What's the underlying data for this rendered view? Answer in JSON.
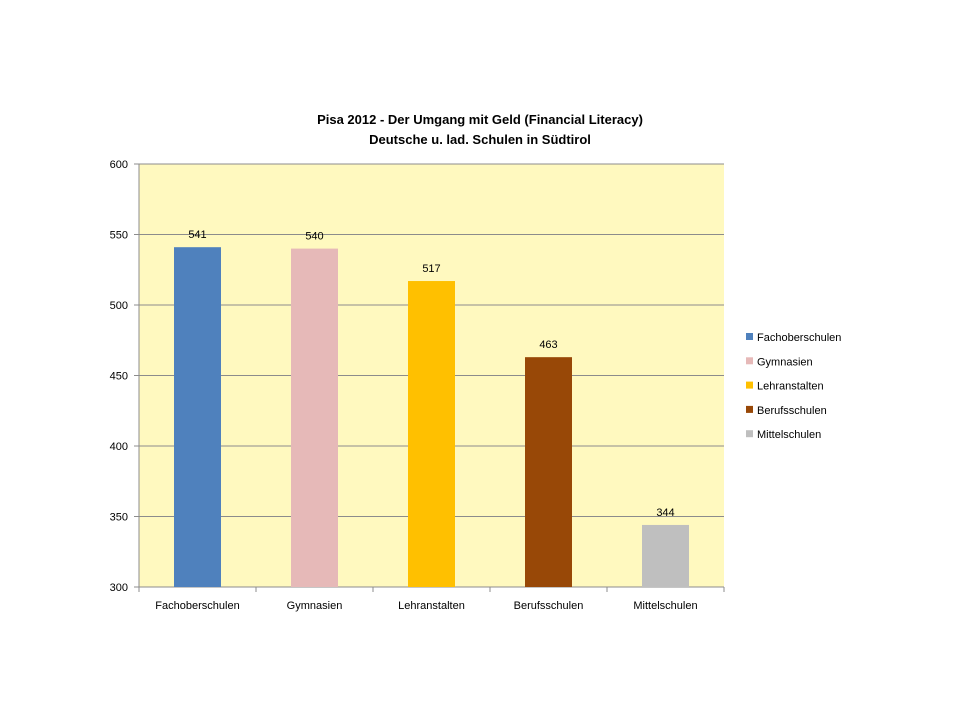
{
  "chart_data": {
    "type": "bar",
    "title": "Pisa 2012 - Der Umgang mit Geld (Financial Literacy)",
    "subtitle": "Deutsche u. lad. Schulen in Südtirol",
    "xlabel": "",
    "ylabel": "",
    "categories": [
      "Fachoberschulen",
      "Gymnasien",
      "Lehranstalten",
      "Berufsschulen",
      "Mittelschulen"
    ],
    "values": [
      541,
      540,
      517,
      463,
      344
    ],
    "data_labels": [
      "541",
      "540",
      "517",
      "463",
      "344"
    ],
    "colors": [
      "#4F81BD",
      "#E6B9B8",
      "#FFC000",
      "#984807",
      "#BFBFBF"
    ],
    "ylim": [
      300,
      600
    ],
    "yticks": [
      300,
      350,
      400,
      450,
      500,
      550,
      600
    ],
    "ytick_labels": [
      "300",
      "350",
      "400",
      "450",
      "500",
      "550",
      "600"
    ],
    "grid": true,
    "plot_background": "#FFF9BF",
    "legend": {
      "placement": "right",
      "entries": [
        "Fachoberschulen",
        "Gymnasien",
        "Lehranstalten",
        "Berufsschulen",
        "Mittelschulen"
      ]
    }
  }
}
